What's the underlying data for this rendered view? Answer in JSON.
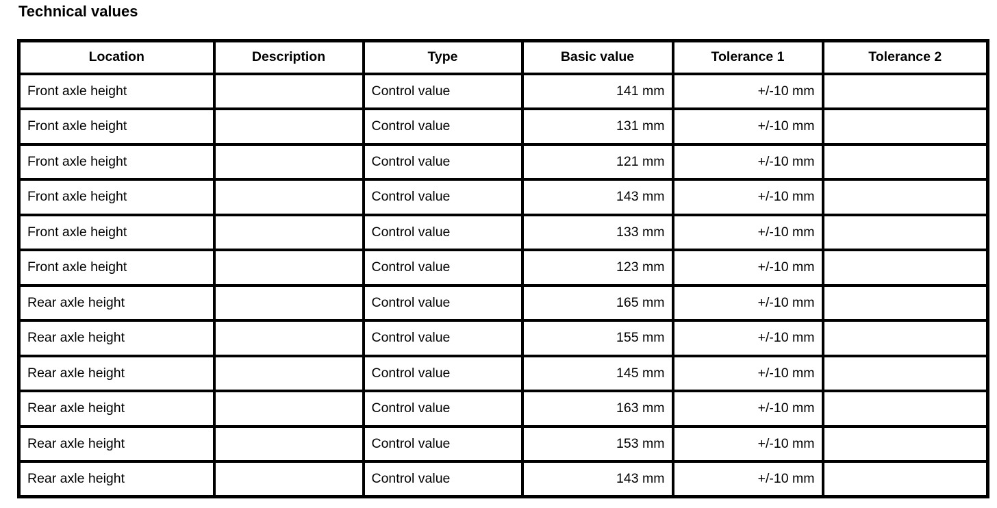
{
  "page": {
    "title": "Technical values"
  },
  "table": {
    "columns": [
      {
        "label": "Location"
      },
      {
        "label": "Description"
      },
      {
        "label": "Type"
      },
      {
        "label": "Basic value"
      },
      {
        "label": "Tolerance 1"
      },
      {
        "label": "Tolerance 2"
      }
    ],
    "rows": [
      {
        "location": "Front axle height",
        "description": "",
        "type": "Control value",
        "basic_value": "141 mm",
        "tolerance_1": "+/-10 mm",
        "tolerance_2": ""
      },
      {
        "location": "Front axle height",
        "description": "",
        "type": "Control value",
        "basic_value": "131 mm",
        "tolerance_1": "+/-10 mm",
        "tolerance_2": ""
      },
      {
        "location": "Front axle height",
        "description": "",
        "type": "Control value",
        "basic_value": "121 mm",
        "tolerance_1": "+/-10 mm",
        "tolerance_2": ""
      },
      {
        "location": "Front axle height",
        "description": "",
        "type": "Control value",
        "basic_value": "143 mm",
        "tolerance_1": "+/-10 mm",
        "tolerance_2": ""
      },
      {
        "location": "Front axle height",
        "description": "",
        "type": "Control value",
        "basic_value": "133 mm",
        "tolerance_1": "+/-10 mm",
        "tolerance_2": ""
      },
      {
        "location": "Front axle height",
        "description": "",
        "type": "Control value",
        "basic_value": "123 mm",
        "tolerance_1": "+/-10 mm",
        "tolerance_2": ""
      },
      {
        "location": "Rear axle height",
        "description": "",
        "type": "Control value",
        "basic_value": "165 mm",
        "tolerance_1": "+/-10 mm",
        "tolerance_2": ""
      },
      {
        "location": "Rear axle height",
        "description": "",
        "type": "Control value",
        "basic_value": "155 mm",
        "tolerance_1": "+/-10 mm",
        "tolerance_2": ""
      },
      {
        "location": "Rear axle height",
        "description": "",
        "type": "Control value",
        "basic_value": "145 mm",
        "tolerance_1": "+/-10 mm",
        "tolerance_2": ""
      },
      {
        "location": "Rear axle height",
        "description": "",
        "type": "Control value",
        "basic_value": "163 mm",
        "tolerance_1": "+/-10 mm",
        "tolerance_2": ""
      },
      {
        "location": "Rear axle height",
        "description": "",
        "type": "Control value",
        "basic_value": "153 mm",
        "tolerance_1": "+/-10 mm",
        "tolerance_2": ""
      },
      {
        "location": "Rear axle height",
        "description": "",
        "type": "Control value",
        "basic_value": "143 mm",
        "tolerance_1": "+/-10 mm",
        "tolerance_2": ""
      }
    ]
  }
}
